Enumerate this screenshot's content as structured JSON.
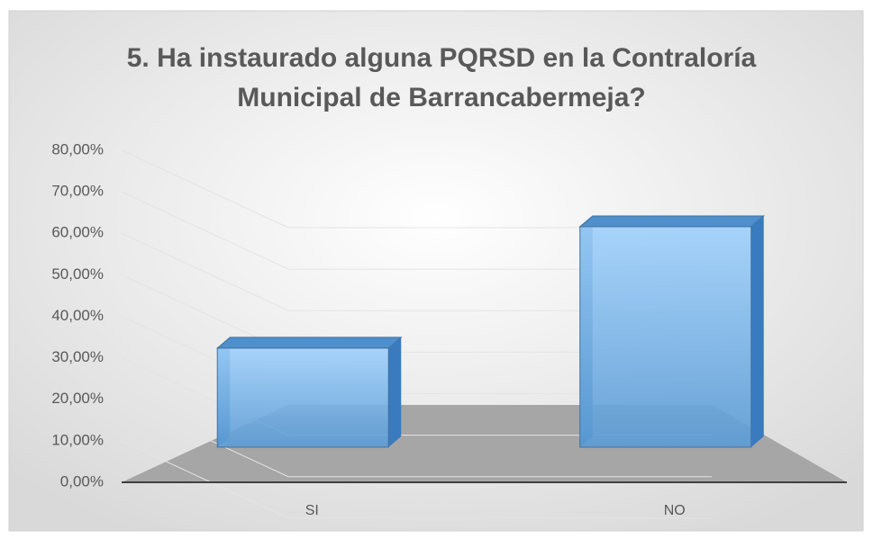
{
  "chart_data": {
    "type": "bar3d",
    "title": "5. Ha instaurado alguna PQRSD en la Contraloría Municipal de Barrancabermeja?",
    "title_lines": [
      "5. Ha instaurado alguna PQRSD en la Contraloría",
      "Municipal de Barrancabermeja?"
    ],
    "categories": [
      "SI",
      "NO"
    ],
    "values": [
      31,
      69
    ],
    "color": "#5b9bd5",
    "ylim": [
      0,
      80
    ],
    "yticks": [
      {
        "value": 0,
        "label": "0,00%"
      },
      {
        "value": 10,
        "label": "10,00%"
      },
      {
        "value": 20,
        "label": "20,00%"
      },
      {
        "value": 30,
        "label": "30,00%"
      },
      {
        "value": 40,
        "label": "40,00%"
      },
      {
        "value": 50,
        "label": "50,00%"
      },
      {
        "value": 60,
        "label": "60,00%"
      },
      {
        "value": 70,
        "label": "70,00%"
      },
      {
        "value": 80,
        "label": "80,00%"
      }
    ],
    "grid": true
  }
}
